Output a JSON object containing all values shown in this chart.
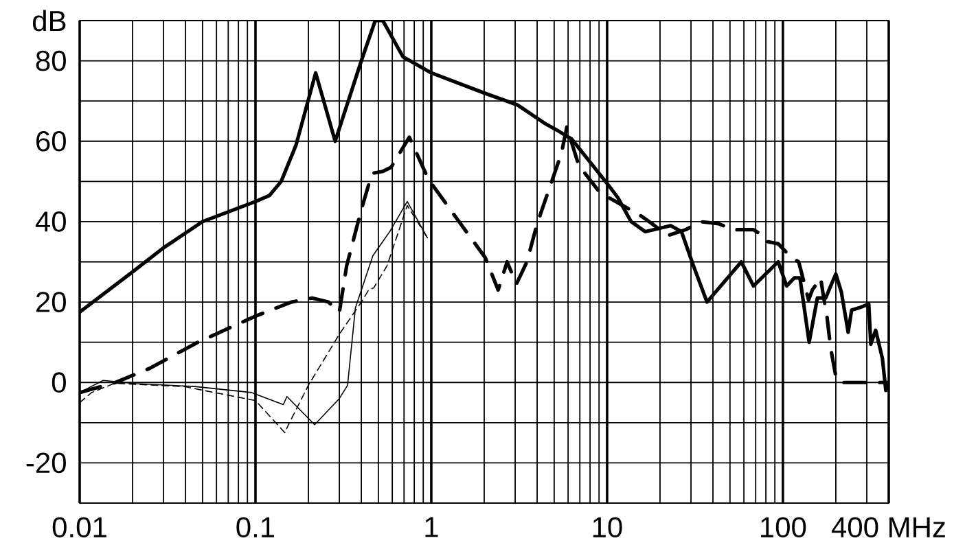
{
  "chart_data": {
    "type": "line",
    "log": "x",
    "grid": true,
    "xlim": [
      0.01,
      400
    ],
    "ylim": [
      -30,
      90
    ],
    "xticks": [
      0.01,
      0.1,
      1,
      10,
      100,
      {
        "value": 400,
        "label": "400 MHz"
      }
    ],
    "yticks": [
      {
        "value": -30,
        "label": null
      },
      -20,
      {
        "value": -10,
        "label": null
      },
      0,
      {
        "value": 10,
        "label": null
      },
      20,
      {
        "value": 30,
        "label": null
      },
      40,
      {
        "value": 50,
        "label": null
      },
      60,
      {
        "value": 70,
        "label": null
      },
      80,
      {
        "value": 90,
        "label": "dB"
      }
    ],
    "series": [
      {
        "color": "#000000",
        "line_style": "solid",
        "x": [
          0.01,
          0.02,
          0.03,
          0.05,
          0.1,
          0.12,
          0.14,
          0.17,
          0.22,
          0.284,
          0.4,
          0.48,
          0.53,
          0.69,
          1,
          2,
          3.1,
          4.4,
          5.3,
          6.3,
          8.1,
          10,
          11.5,
          13.7,
          16.5,
          23,
          26.5,
          31,
          37,
          58,
          68,
          94,
          105,
          116,
          125,
          141,
          157,
          175,
          200,
          215,
          235,
          246,
          269,
          308,
          316,
          337,
          368,
          385,
          400
        ],
        "values": [
          17.5,
          27.5,
          33.5,
          40,
          45,
          46.5,
          50,
          59,
          77,
          60,
          80,
          90,
          90,
          81,
          77,
          72,
          69,
          64.5,
          62.5,
          60.5,
          54.5,
          49.5,
          46,
          40,
          37.5,
          39,
          37.5,
          29,
          20,
          30,
          24,
          30,
          24,
          26,
          26,
          10,
          21,
          21,
          27,
          22.5,
          12.5,
          18,
          18.5,
          19.5,
          9.5,
          13,
          6,
          -2,
          0
        ]
      },
      {
        "color": "#000000",
        "line_style": "dashed",
        "x": [
          0.01,
          0.016,
          0.025,
          0.047,
          0.1,
          0.16,
          0.21,
          0.26,
          0.3,
          0.33,
          0.4,
          0.46,
          0.53,
          0.59,
          0.75,
          0.93,
          1.02,
          2.03,
          2.4,
          2.7,
          3.05,
          3.5,
          4,
          5.5,
          5.9,
          6.9,
          9,
          10.2,
          15.5,
          18,
          22,
          28,
          34,
          43,
          52,
          68,
          77,
          82,
          94,
          112,
          123,
          140,
          147,
          164,
          170,
          178,
          187,
          201,
          211,
          400
        ],
        "values": [
          -2.5,
          0,
          3.5,
          10,
          16.5,
          20,
          21,
          20,
          17.5,
          29,
          43,
          52,
          52.5,
          53.5,
          61,
          52,
          49,
          31,
          23,
          30,
          24.5,
          30,
          39.5,
          57,
          63.5,
          54,
          47.5,
          46,
          41.5,
          39.5,
          36.5,
          38,
          40,
          39.5,
          38,
          38,
          36.5,
          35,
          34.5,
          31,
          30,
          20.5,
          23,
          26,
          21.5,
          16.5,
          8.5,
          1,
          0,
          0
        ]
      },
      {
        "color": "#000000",
        "line_style": "solid",
        "x": [
          0.01,
          0.0136,
          0.021,
          0.045,
          0.095,
          0.144,
          0.151,
          0.217,
          0.3,
          0.334,
          0.37,
          0.465,
          0.58,
          0.73,
          0.95
        ],
        "values": [
          -2.5,
          0.5,
          -0.3,
          -1,
          -2.5,
          -5.5,
          -3.5,
          -10.5,
          -4,
          -0.7,
          18.5,
          31.5,
          37.5,
          45,
          36
        ]
      },
      {
        "color": "#000000",
        "line_style": "dashed",
        "x": [
          0.01,
          0.0117,
          0.0158,
          0.039,
          0.1,
          0.147,
          0.154,
          0.2,
          0.3,
          0.4,
          0.44,
          0.47,
          0.56,
          0.58,
          0.73,
          0.95
        ],
        "values": [
          -5,
          -2.5,
          -0.2,
          -1,
          -4.5,
          -12.5,
          -10.5,
          -0.7,
          12,
          20,
          23,
          23.5,
          29,
          31,
          44,
          36
        ]
      }
    ]
  }
}
